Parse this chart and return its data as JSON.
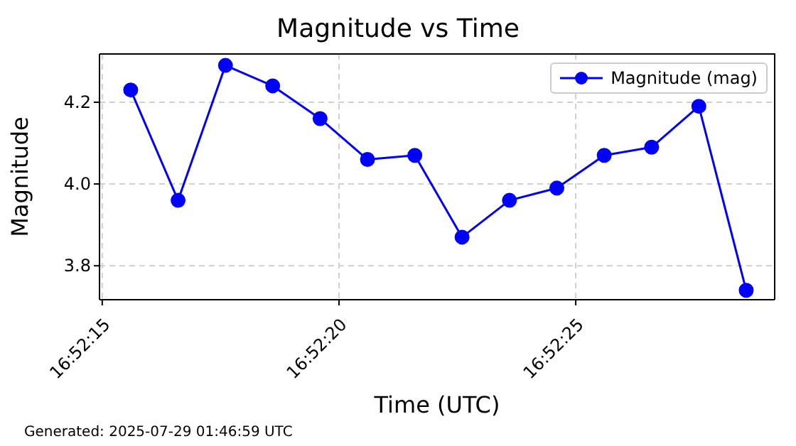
{
  "chart_data": {
    "type": "line",
    "title": "Magnitude vs Time",
    "xlabel": "Time (UTC)",
    "ylabel": "Magnitude",
    "annotations": [
      "Generated: 2025-07-29 01:46:59 UTC"
    ],
    "x": [
      16.871,
      16.871278,
      16.871556,
      16.871833,
      16.872111,
      16.872389,
      16.872667,
      16.872944,
      16.873222,
      16.8735,
      16.873778,
      16.874056,
      16.874333,
      16.874611
    ],
    "series": [
      {
        "name": "Magnitude (mag)",
        "color": "#0000ff",
        "values": [
          4.23,
          3.96,
          4.29,
          4.24,
          4.16,
          4.06,
          4.07,
          3.87,
          3.96,
          3.99,
          4.07,
          4.09,
          4.19,
          3.74
        ]
      }
    ],
    "xlim": [
      16.870817,
      16.874778
    ],
    "xticks": [
      {
        "value": 16.870833,
        "label": "16:52:15"
      },
      {
        "value": 16.872222,
        "label": "16:52:20"
      },
      {
        "value": 16.873611,
        "label": "16:52:25"
      }
    ],
    "ylim": [
      3.717,
      4.318
    ],
    "yticks": [
      {
        "value": 3.8,
        "label": "3.8"
      },
      {
        "value": 4.0,
        "label": "4.0"
      },
      {
        "value": 4.2,
        "label": "4.2"
      }
    ],
    "grid": true,
    "legend": "top right",
    "marker": "circle",
    "line_style": "solid"
  }
}
